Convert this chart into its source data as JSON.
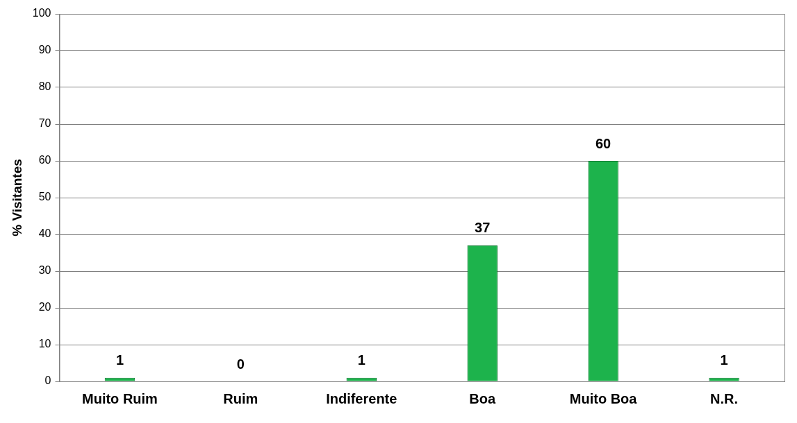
{
  "chart_data": {
    "type": "bar",
    "ylabel": "% Visitantes",
    "categories": [
      "Muito Ruim",
      "Ruim",
      "Indiferente",
      "Boa",
      "Muito Boa",
      "N.R."
    ],
    "values": [
      1,
      0,
      1,
      37,
      60,
      1
    ],
    "color": "#1db34c",
    "ylim": [
      0,
      100
    ],
    "yticks": [
      0,
      10,
      20,
      30,
      40,
      50,
      60,
      70,
      80,
      90,
      100
    ],
    "grid": "y",
    "data_labels": true,
    "legend": false
  }
}
